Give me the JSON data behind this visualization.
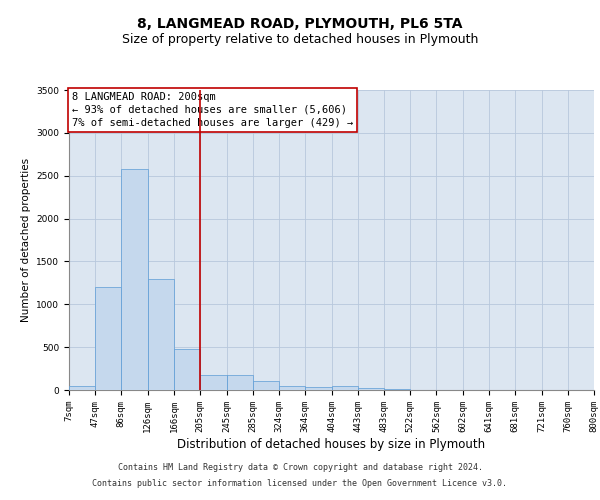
{
  "title": "8, LANGMEAD ROAD, PLYMOUTH, PL6 5TA",
  "subtitle": "Size of property relative to detached houses in Plymouth",
  "xlabel": "Distribution of detached houses by size in Plymouth",
  "ylabel": "Number of detached properties",
  "bin_edges": [
    7,
    47,
    86,
    126,
    166,
    205,
    245,
    285,
    324,
    364,
    404,
    443,
    483,
    522,
    562,
    602,
    641,
    681,
    721,
    760,
    800
  ],
  "bar_heights": [
    50,
    1200,
    2580,
    1300,
    480,
    180,
    170,
    100,
    50,
    30,
    50,
    20,
    10,
    5,
    0,
    0,
    0,
    0,
    0,
    0
  ],
  "bar_color": "#c5d8ed",
  "bar_edge_color": "#5b9bd5",
  "grid_color": "#b8c8dc",
  "plot_bg_color": "#dce6f1",
  "property_line_x": 205,
  "property_line_color": "#c00000",
  "annotation_line1": "8 LANGMEAD ROAD: 200sqm",
  "annotation_line2": "← 93% of detached houses are smaller (5,606)",
  "annotation_line3": "7% of semi-detached houses are larger (429) →",
  "annotation_box_color": "#c00000",
  "ylim": [
    0,
    3500
  ],
  "yticks": [
    0,
    500,
    1000,
    1500,
    2000,
    2500,
    3000,
    3500
  ],
  "footer_line1": "Contains HM Land Registry data © Crown copyright and database right 2024.",
  "footer_line2": "Contains public sector information licensed under the Open Government Licence v3.0.",
  "title_fontsize": 10,
  "subtitle_fontsize": 9,
  "xlabel_fontsize": 8.5,
  "ylabel_fontsize": 7.5,
  "tick_fontsize": 6.5,
  "annotation_fontsize": 7.5,
  "footer_fontsize": 6
}
